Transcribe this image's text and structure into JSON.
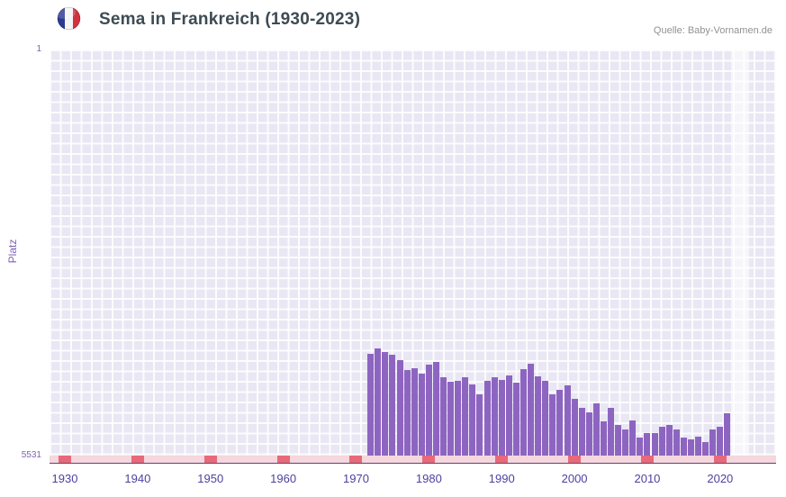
{
  "header": {
    "title": "Sema in Frankreich (1930-2023)",
    "source": "Quelle: Baby-Vornamen.de"
  },
  "chart_data": {
    "type": "bar",
    "title": "Sema in Frankreich (1930-2023)",
    "xlabel": "",
    "ylabel": "Platz",
    "y_axis": {
      "top_label": "1",
      "bottom_label": "5531",
      "min": 1,
      "max": 5531,
      "inverted": true
    },
    "x_ticks": [
      1930,
      1940,
      1950,
      1960,
      1970,
      1980,
      1990,
      2000,
      2010,
      2020
    ],
    "x_range": [
      1928,
      2027
    ],
    "grid": true,
    "legend": "none",
    "highlight_band_years": [
      2022,
      2023
    ],
    "series": [
      {
        "name": "Platz",
        "years": [
          1972,
          1973,
          1974,
          1975,
          1976,
          1977,
          1978,
          1979,
          1980,
          1981,
          1982,
          1983,
          1984,
          1985,
          1986,
          1987,
          1988,
          1989,
          1990,
          1991,
          1992,
          1993,
          1994,
          1995,
          1996,
          1997,
          1998,
          1999,
          2000,
          2001,
          2002,
          2003,
          2004,
          2005,
          2006,
          2007,
          2008,
          2009,
          2010,
          2011,
          2012,
          2013,
          2014,
          2015,
          2016,
          2017,
          2018,
          2019,
          2020,
          2021
        ],
        "ranks": [
          4150,
          4070,
          4120,
          4160,
          4230,
          4370,
          4340,
          4420,
          4290,
          4260,
          4460,
          4520,
          4510,
          4470,
          4560,
          4700,
          4510,
          4470,
          4500,
          4440,
          4540,
          4350,
          4280,
          4450,
          4510,
          4700,
          4640,
          4570,
          4760,
          4880,
          4940,
          4820,
          5060,
          4880,
          5110,
          5170,
          5050,
          5290,
          5230,
          5230,
          5140,
          5110,
          5170,
          5290,
          5310,
          5270,
          5350,
          5170,
          5140,
          4960
        ]
      }
    ],
    "colors": {
      "bar": "#8d65c1",
      "plot_background": "#e9e7f3",
      "grid_line": "#ffffff",
      "axis_text": "#4c42a0",
      "y_text": "#7e63b5",
      "baseline_strip": "#f5d7dd",
      "decade_marker": "#e8697a",
      "title_text": "#3d4b54",
      "source_text": "#8f9295",
      "flag_blue": "#2b3990",
      "flag_white": "#f4f4f4",
      "flag_red": "#d0323e"
    }
  }
}
